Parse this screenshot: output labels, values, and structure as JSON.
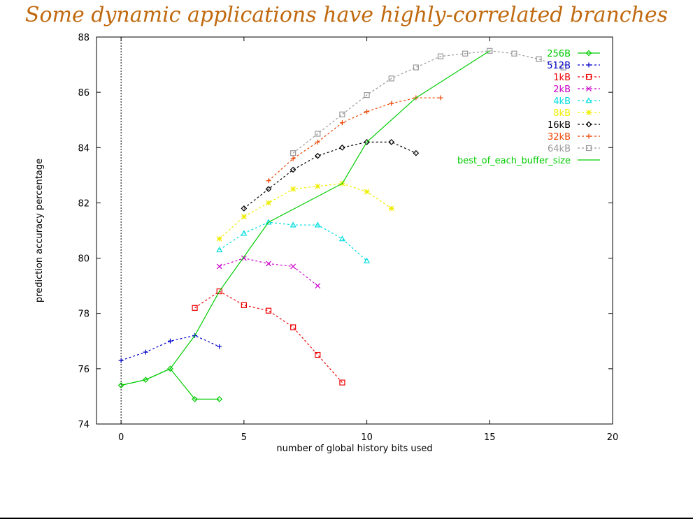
{
  "slide": {
    "title": "Some dynamic applications have highly-correlated branches"
  },
  "chart_data": {
    "type": "line",
    "title": "",
    "xlabel": "number of global history bits used",
    "ylabel": "prediction accuracy percentage",
    "xlim": [
      -1,
      20
    ],
    "ylim": [
      74,
      88
    ],
    "xticks": [
      0,
      5,
      10,
      15,
      20
    ],
    "yticks": [
      74,
      76,
      78,
      80,
      82,
      84,
      86,
      88
    ],
    "grid": false,
    "legend_position": "top-right",
    "series": [
      {
        "name": "256B",
        "color": "#00cc00",
        "marker": "diamond",
        "dash": "solid",
        "x": [
          0,
          1,
          2,
          3,
          4
        ],
        "y": [
          75.4,
          75.6,
          76.0,
          74.9,
          74.9
        ]
      },
      {
        "name": "512B",
        "color": "#0000cc",
        "marker": "plus",
        "dash": "dashed",
        "x": [
          0,
          1,
          2,
          3,
          4
        ],
        "y": [
          76.3,
          76.6,
          77.0,
          77.2,
          76.8
        ]
      },
      {
        "name": "1kB",
        "color": "#ee0000",
        "marker": "square",
        "dash": "dashed",
        "x": [
          3,
          4,
          5,
          6,
          7,
          8,
          9
        ],
        "y": [
          78.2,
          78.8,
          78.3,
          78.1,
          77.5,
          76.5,
          75.5
        ]
      },
      {
        "name": "2kB",
        "color": "#cc00cc",
        "marker": "cross",
        "dash": "dashed",
        "x": [
          4,
          5,
          6,
          7,
          8
        ],
        "y": [
          79.7,
          80.0,
          79.8,
          79.7,
          79.0
        ]
      },
      {
        "name": "4kB",
        "color": "#00dddd",
        "marker": "triangle",
        "dash": "dashed",
        "x": [
          4,
          5,
          6,
          7,
          8,
          9,
          10
        ],
        "y": [
          80.3,
          80.9,
          81.3,
          81.2,
          81.2,
          80.7,
          79.9
        ]
      },
      {
        "name": "8kB",
        "color": "#eeee00",
        "marker": "star",
        "dash": "dashed",
        "x": [
          4,
          5,
          6,
          7,
          8,
          9,
          10,
          11
        ],
        "y": [
          80.7,
          81.5,
          82.0,
          82.5,
          82.6,
          82.7,
          82.4,
          81.8
        ]
      },
      {
        "name": "16kB",
        "color": "#000000",
        "marker": "diamond",
        "dash": "dashed",
        "x": [
          5,
          6,
          7,
          8,
          9,
          10,
          11,
          12
        ],
        "y": [
          81.8,
          82.5,
          83.2,
          83.7,
          84.0,
          84.2,
          84.2,
          83.8
        ]
      },
      {
        "name": "32kB",
        "color": "#ee4400",
        "marker": "plus",
        "dash": "dashed",
        "x": [
          6,
          7,
          8,
          9,
          10,
          11,
          12,
          13
        ],
        "y": [
          82.8,
          83.6,
          84.2,
          84.9,
          85.3,
          85.6,
          85.8,
          85.8
        ]
      },
      {
        "name": "64kB",
        "color": "#999999",
        "marker": "square",
        "dash": "dashed",
        "x": [
          7,
          8,
          9,
          10,
          11,
          12,
          13,
          14,
          15,
          16,
          17,
          18
        ],
        "y": [
          83.8,
          84.5,
          85.2,
          85.9,
          86.5,
          86.9,
          87.3,
          87.4,
          87.5,
          87.4,
          87.2,
          86.9
        ]
      },
      {
        "name": "best_of_each_buffer_size",
        "color": "#00cc00",
        "marker": "none",
        "dash": "solid",
        "x": [
          0,
          1,
          2,
          3,
          4,
          6,
          9,
          10,
          12,
          15
        ],
        "y": [
          75.4,
          75.6,
          76.0,
          77.2,
          78.8,
          81.3,
          82.7,
          84.2,
          85.8,
          87.5
        ]
      }
    ]
  }
}
